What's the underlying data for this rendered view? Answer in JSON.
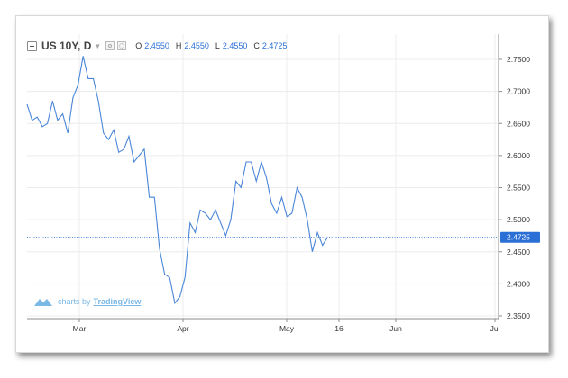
{
  "legend": {
    "symbol": "US 10Y, D",
    "open_label": "O",
    "open_value": "2.4550",
    "high_label": "H",
    "high_value": "2.4550",
    "low_label": "L",
    "low_value": "2.4550",
    "close_label": "C",
    "close_value": "2.4725"
  },
  "watermark": {
    "prefix": "charts by",
    "brand": "TradingView"
  },
  "price_tag": "2.4725",
  "colors": {
    "line": "#4a86d8",
    "price_tag_bg": "#2a6fd6",
    "grid": "#ececec",
    "watermark": "#7ab8e6"
  },
  "chart_data": {
    "type": "line",
    "x_ticks": [
      "Mar",
      "Apr",
      "May",
      "16",
      "Jun",
      "Jul"
    ],
    "y_ticks": [
      "2.7500",
      "2.7000",
      "2.6500",
      "2.6000",
      "2.5500",
      "2.5000",
      "2.4500",
      "2.4000",
      "2.3500"
    ],
    "ylim": [
      2.345,
      2.79
    ],
    "grid": true,
    "current_price": 2.4725,
    "series": [
      {
        "values": [
          2.68,
          2.655,
          2.66,
          2.645,
          2.65,
          2.685,
          2.655,
          2.665,
          2.635,
          2.69,
          2.71,
          2.755,
          2.72,
          2.72,
          2.685,
          2.635,
          2.625,
          2.64,
          2.605,
          2.61,
          2.63,
          2.59,
          2.6,
          2.61,
          2.535,
          2.535,
          2.455,
          2.415,
          2.41,
          2.37,
          2.38,
          2.41,
          2.495,
          2.48,
          2.515,
          2.51,
          2.5,
          2.515,
          2.495,
          2.475,
          2.5,
          2.56,
          2.55,
          2.59,
          2.59,
          2.56,
          2.59,
          2.565,
          2.525,
          2.51,
          2.535,
          2.505,
          2.51,
          2.55,
          2.535,
          2.5,
          2.45,
          2.48,
          2.46,
          2.4725
        ]
      }
    ]
  }
}
